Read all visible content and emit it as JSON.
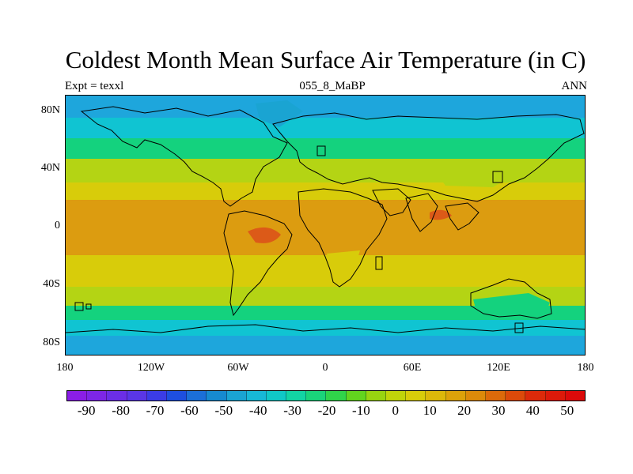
{
  "title": "Coldest Month Mean Surface Air Temperature (in C)",
  "subtitle_left": "Expt = texxl",
  "subtitle_center": "055_8_MaBP",
  "subtitle_right": "ANN",
  "lat_labels": [
    "80N",
    "40N",
    "0",
    "40S",
    "80S"
  ],
  "lon_labels": [
    "180",
    "120W",
    "60W",
    "0",
    "60E",
    "120E",
    "180"
  ],
  "colorbar": {
    "labels": [
      "-90",
      "-80",
      "-70",
      "-60",
      "-50",
      "-40",
      "-30",
      "-20",
      "-10",
      "0",
      "10",
      "20",
      "30",
      "40",
      "50"
    ],
    "colors": [
      "#8a1ee6",
      "#7d26e6",
      "#6b2ee6",
      "#5a36e6",
      "#3b3ce6",
      "#1e4fe0",
      "#1b6fd8",
      "#168ad0",
      "#1aa4d2",
      "#17b8d6",
      "#10c8c6",
      "#12d4a4",
      "#1ad47a",
      "#30d44a",
      "#62d41e",
      "#98d410",
      "#c0d40a",
      "#d8cc0a",
      "#dcb80a",
      "#dca20a",
      "#dc8a0a",
      "#dc6a0a",
      "#dc4a0a",
      "#dc2a0a",
      "#dc1a0a",
      "#dc0a0a"
    ]
  },
  "colors": {
    "polar": "#1ea6dc",
    "subpolar": "#10c4d2",
    "cool": "#14d27e",
    "midlat": "#b4d414",
    "subtropical": "#d8cc0a",
    "tropical": "#dc9c10",
    "hot": "#dc5a18",
    "coastline": "#000000"
  }
}
